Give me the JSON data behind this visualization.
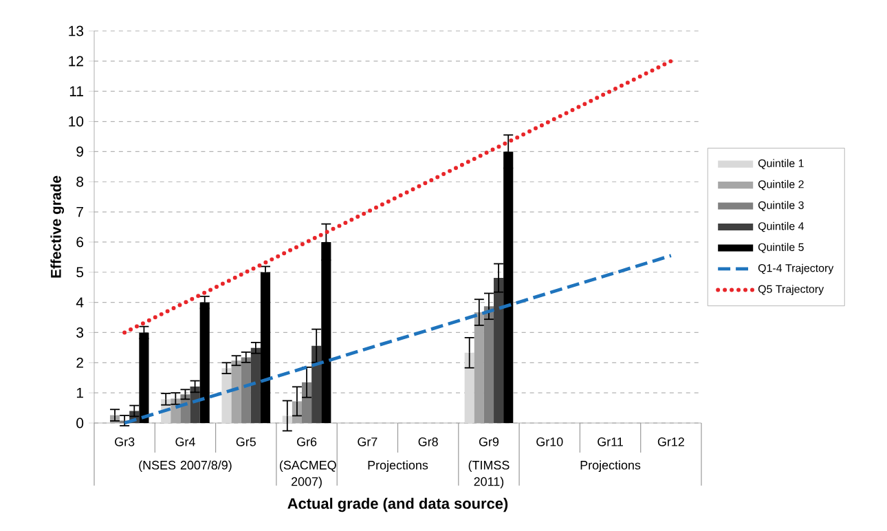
{
  "chart_data": {
    "type": "bar",
    "xlabel": "Actual grade (and data source)",
    "ylabel": "Effective grade",
    "categories": [
      "Gr3",
      "Gr4",
      "Gr5",
      "Gr6",
      "Gr7",
      "Gr8",
      "Gr9",
      "Gr10",
      "Gr11",
      "Gr12"
    ],
    "series": [
      {
        "name": "Quintile 1",
        "color": "#d9d9d9",
        "values": [
          0.0,
          0.79,
          1.82,
          0.24,
          null,
          null,
          2.33,
          null,
          null,
          null
        ],
        "errors": [
          null,
          0.19,
          0.18,
          0.5,
          null,
          null,
          0.5,
          null,
          null,
          null
        ]
      },
      {
        "name": "Quintile 2",
        "color": "#a6a6a6",
        "values": [
          0.26,
          0.81,
          2.07,
          0.72,
          null,
          null,
          3.67,
          null,
          null,
          null
        ],
        "errors": [
          0.19,
          0.19,
          0.16,
          0.48,
          null,
          null,
          0.43,
          null,
          null,
          null
        ]
      },
      {
        "name": "Quintile 3",
        "color": "#808080",
        "values": [
          0.08,
          0.95,
          2.18,
          1.35,
          null,
          null,
          3.87,
          null,
          null,
          null
        ],
        "errors": [
          0.17,
          0.16,
          0.17,
          0.5,
          null,
          null,
          0.43,
          null,
          null,
          null
        ]
      },
      {
        "name": "Quintile 4",
        "color": "#404040",
        "values": [
          0.4,
          1.21,
          2.49,
          2.56,
          null,
          null,
          4.81,
          null,
          null,
          null
        ],
        "errors": [
          0.18,
          0.19,
          0.18,
          0.55,
          null,
          null,
          0.47,
          null,
          null,
          null
        ]
      },
      {
        "name": "Quintile 5",
        "color": "#000000",
        "values": [
          3.0,
          4.0,
          5.0,
          6.0,
          null,
          null,
          9.0,
          null,
          null,
          null
        ],
        "errors": [
          0.2,
          0.2,
          0.19,
          0.6,
          null,
          null,
          0.55,
          null,
          null,
          null
        ]
      },
      {
        "name": "Q1-4 Trajectory",
        "type": "line",
        "line_style": "dashed",
        "color": "#1f74bd",
        "values": [
          0.0,
          0.62,
          1.23,
          1.85,
          2.47,
          3.08,
          3.7,
          4.32,
          4.93,
          5.55
        ]
      },
      {
        "name": "Q5 Trajectory",
        "type": "line",
        "line_style": "dotted",
        "color": "#e8262a",
        "values": [
          3,
          4,
          5,
          6,
          7,
          8,
          9,
          10,
          11,
          12
        ]
      }
    ],
    "ylim": [
      0,
      13
    ],
    "yticks": [
      0,
      1,
      2,
      3,
      4,
      5,
      6,
      7,
      8,
      9,
      10,
      11,
      12,
      13
    ],
    "grid": "y",
    "legend": "right",
    "marker": "none",
    "annotations": [
      "(NSES 2007/8/9)",
      "(SACMEQ 2007)",
      "Projections",
      "(TIMSS 2011)",
      "Projections"
    ]
  }
}
